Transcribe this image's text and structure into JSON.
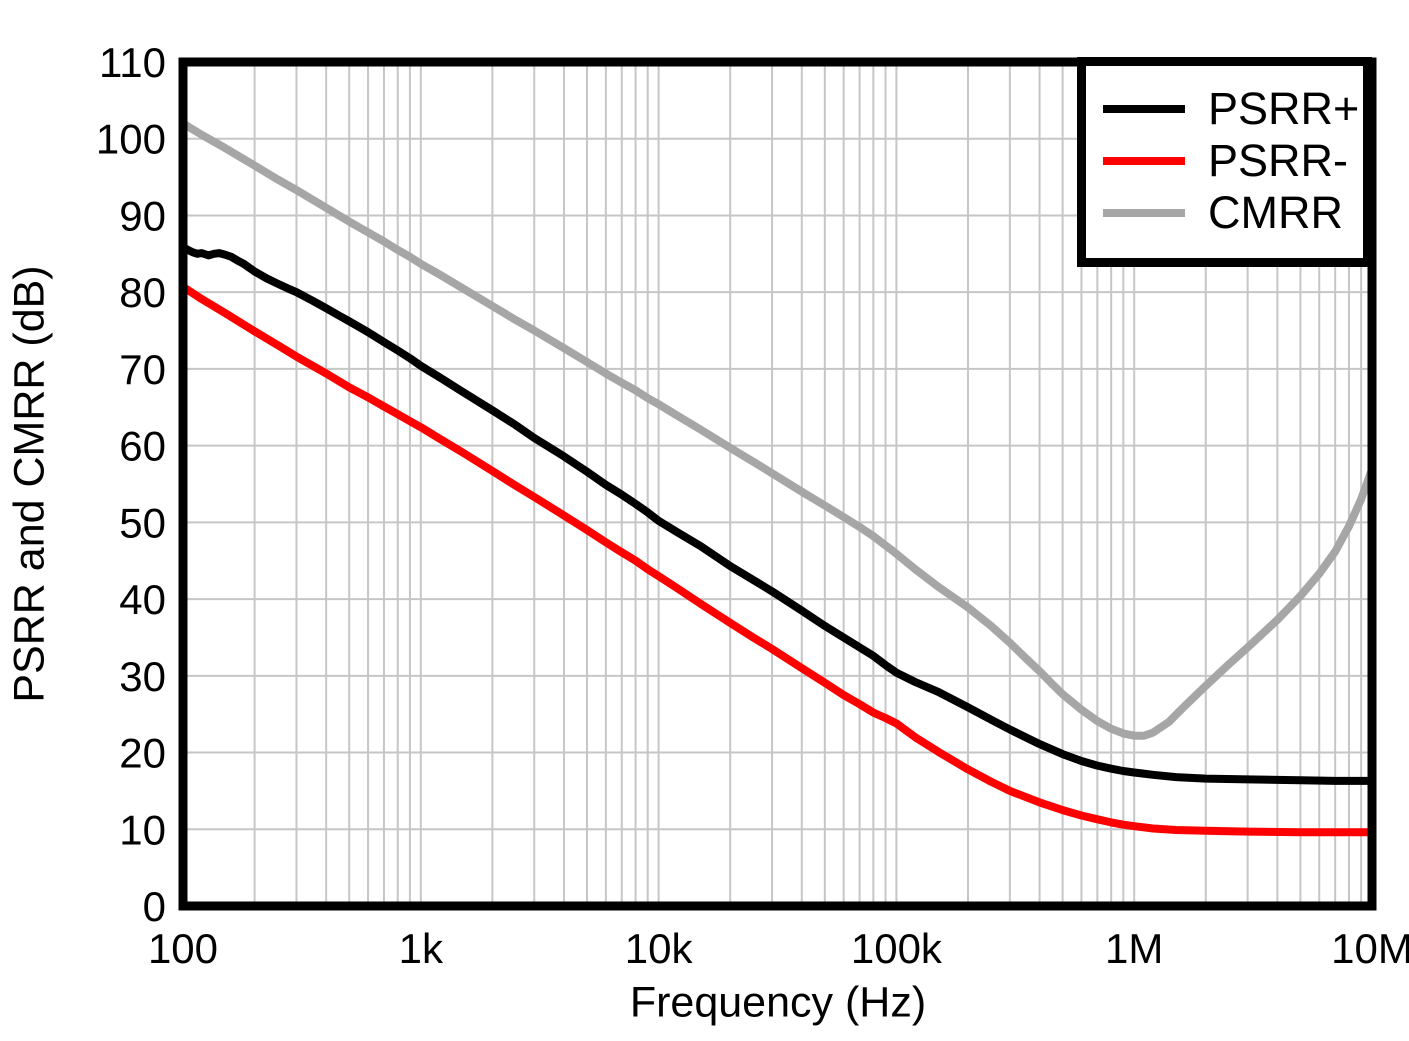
{
  "chart_data": {
    "type": "line",
    "title": "",
    "xlabel": "Frequency (Hz)",
    "ylabel": "PSRR and CMRR (dB)",
    "x_scale": "log",
    "xlim": [
      100,
      10000000
    ],
    "ylim": [
      0,
      110
    ],
    "y_ticks": [
      0,
      10,
      20,
      30,
      40,
      50,
      60,
      70,
      80,
      90,
      100,
      110
    ],
    "x_ticks": [
      {
        "value": 100,
        "label": "100"
      },
      {
        "value": 1000,
        "label": "1k"
      },
      {
        "value": 10000,
        "label": "10k"
      },
      {
        "value": 100000,
        "label": "100k"
      },
      {
        "value": 1000000,
        "label": "1M"
      },
      {
        "value": 10000000,
        "label": "10M"
      }
    ],
    "grid": {
      "x_major": true,
      "x_minor_log": true,
      "y_major": true,
      "y_minor": false
    },
    "legend_position": "top-right",
    "series": [
      {
        "name": "PSRR+",
        "color": "#000000",
        "points": [
          [
            100,
            85.9
          ],
          [
            105,
            85.5
          ],
          [
            110,
            85.2
          ],
          [
            115,
            85.0
          ],
          [
            120,
            85.1
          ],
          [
            128,
            84.8
          ],
          [
            135,
            85.0
          ],
          [
            142,
            85.1
          ],
          [
            150,
            84.9
          ],
          [
            160,
            84.6
          ],
          [
            170,
            84.1
          ],
          [
            180,
            83.7
          ],
          [
            200,
            82.7
          ],
          [
            225,
            81.8
          ],
          [
            250,
            81.1
          ],
          [
            275,
            80.5
          ],
          [
            300,
            80.0
          ],
          [
            350,
            78.9
          ],
          [
            400,
            77.9
          ],
          [
            450,
            77.0
          ],
          [
            500,
            76.2
          ],
          [
            600,
            74.8
          ],
          [
            700,
            73.5
          ],
          [
            800,
            72.4
          ],
          [
            900,
            71.4
          ],
          [
            1000,
            70.4
          ],
          [
            1200,
            68.9
          ],
          [
            1500,
            67.0
          ],
          [
            2000,
            64.6
          ],
          [
            2500,
            62.7
          ],
          [
            3000,
            61.0
          ],
          [
            4000,
            58.6
          ],
          [
            5000,
            56.6
          ],
          [
            6000,
            54.9
          ],
          [
            7000,
            53.6
          ],
          [
            8000,
            52.4
          ],
          [
            9000,
            51.3
          ],
          [
            10000,
            50.2
          ],
          [
            12000,
            48.7
          ],
          [
            15000,
            46.9
          ],
          [
            20000,
            44.3
          ],
          [
            25000,
            42.5
          ],
          [
            30000,
            41.0
          ],
          [
            40000,
            38.5
          ],
          [
            50000,
            36.5
          ],
          [
            60000,
            35.0
          ],
          [
            70000,
            33.7
          ],
          [
            80000,
            32.6
          ],
          [
            90000,
            31.4
          ],
          [
            100000,
            30.4
          ],
          [
            120000,
            29.2
          ],
          [
            150000,
            27.9
          ],
          [
            200000,
            25.9
          ],
          [
            250000,
            24.3
          ],
          [
            300000,
            23.0
          ],
          [
            400000,
            21.1
          ],
          [
            500000,
            19.8
          ],
          [
            600000,
            18.9
          ],
          [
            700000,
            18.3
          ],
          [
            800000,
            17.9
          ],
          [
            900000,
            17.6
          ],
          [
            1000000,
            17.4
          ],
          [
            1200000,
            17.1
          ],
          [
            1500000,
            16.8
          ],
          [
            2000000,
            16.6
          ],
          [
            3000000,
            16.5
          ],
          [
            5000000,
            16.4
          ],
          [
            7000000,
            16.3
          ],
          [
            10000000,
            16.3
          ]
        ]
      },
      {
        "name": "PSRR-",
        "color": "#ff0000",
        "points": [
          [
            100,
            80.7
          ],
          [
            120,
            79.1
          ],
          [
            150,
            77.3
          ],
          [
            200,
            74.9
          ],
          [
            250,
            73.1
          ],
          [
            300,
            71.6
          ],
          [
            400,
            69.4
          ],
          [
            500,
            67.6
          ],
          [
            600,
            66.3
          ],
          [
            700,
            65.1
          ],
          [
            800,
            64.1
          ],
          [
            900,
            63.2
          ],
          [
            1000,
            62.4
          ],
          [
            1200,
            60.9
          ],
          [
            1500,
            59.1
          ],
          [
            2000,
            56.7
          ],
          [
            2500,
            54.8
          ],
          [
            3000,
            53.3
          ],
          [
            4000,
            50.9
          ],
          [
            5000,
            49.0
          ],
          [
            6000,
            47.4
          ],
          [
            7000,
            46.1
          ],
          [
            8000,
            45.0
          ],
          [
            9000,
            43.9
          ],
          [
            10000,
            43.0
          ],
          [
            12000,
            41.4
          ],
          [
            15000,
            39.4
          ],
          [
            20000,
            36.9
          ],
          [
            25000,
            35.0
          ],
          [
            30000,
            33.5
          ],
          [
            40000,
            31.0
          ],
          [
            50000,
            29.1
          ],
          [
            60000,
            27.5
          ],
          [
            70000,
            26.3
          ],
          [
            80000,
            25.2
          ],
          [
            90000,
            24.5
          ],
          [
            100000,
            23.8
          ],
          [
            120000,
            22.0
          ],
          [
            150000,
            20.1
          ],
          [
            200000,
            17.8
          ],
          [
            250000,
            16.2
          ],
          [
            300000,
            15.0
          ],
          [
            400000,
            13.5
          ],
          [
            500000,
            12.5
          ],
          [
            600000,
            11.8
          ],
          [
            700000,
            11.3
          ],
          [
            800000,
            10.9
          ],
          [
            900000,
            10.6
          ],
          [
            1000000,
            10.4
          ],
          [
            1200000,
            10.1
          ],
          [
            1500000,
            9.9
          ],
          [
            2000000,
            9.8
          ],
          [
            3000000,
            9.7
          ],
          [
            5000000,
            9.6
          ],
          [
            10000000,
            9.6
          ]
        ]
      },
      {
        "name": "CMRR",
        "color": "#a6a6a6",
        "points": [
          [
            100,
            102.0
          ],
          [
            120,
            100.5
          ],
          [
            150,
            98.8
          ],
          [
            200,
            96.5
          ],
          [
            250,
            94.7
          ],
          [
            300,
            93.3
          ],
          [
            400,
            91.0
          ],
          [
            500,
            89.2
          ],
          [
            600,
            87.8
          ],
          [
            700,
            86.6
          ],
          [
            800,
            85.5
          ],
          [
            900,
            84.6
          ],
          [
            1000,
            83.7
          ],
          [
            1200,
            82.3
          ],
          [
            1500,
            80.5
          ],
          [
            2000,
            78.2
          ],
          [
            2500,
            76.4
          ],
          [
            3000,
            75.0
          ],
          [
            4000,
            72.7
          ],
          [
            5000,
            70.9
          ],
          [
            6000,
            69.4
          ],
          [
            7000,
            68.2
          ],
          [
            8000,
            67.2
          ],
          [
            9000,
            66.2
          ],
          [
            10000,
            65.4
          ],
          [
            12000,
            63.9
          ],
          [
            15000,
            62.1
          ],
          [
            20000,
            59.7
          ],
          [
            25000,
            57.9
          ],
          [
            30000,
            56.4
          ],
          [
            40000,
            54.0
          ],
          [
            50000,
            52.2
          ],
          [
            60000,
            50.7
          ],
          [
            70000,
            49.4
          ],
          [
            80000,
            48.2
          ],
          [
            90000,
            47.0
          ],
          [
            100000,
            45.9
          ],
          [
            120000,
            43.9
          ],
          [
            150000,
            41.6
          ],
          [
            200000,
            38.9
          ],
          [
            250000,
            36.5
          ],
          [
            300000,
            34.3
          ],
          [
            350000,
            32.3
          ],
          [
            400000,
            30.6
          ],
          [
            450000,
            29.0
          ],
          [
            500000,
            27.6
          ],
          [
            600000,
            25.6
          ],
          [
            700000,
            24.1
          ],
          [
            800000,
            23.1
          ],
          [
            900000,
            22.5
          ],
          [
            1000000,
            22.2
          ],
          [
            1100000,
            22.2
          ],
          [
            1200000,
            22.6
          ],
          [
            1400000,
            24.0
          ],
          [
            1600000,
            25.8
          ],
          [
            2000000,
            28.7
          ],
          [
            2500000,
            31.5
          ],
          [
            3000000,
            33.7
          ],
          [
            4000000,
            37.3
          ],
          [
            5000000,
            40.4
          ],
          [
            6000000,
            43.3
          ],
          [
            7000000,
            46.2
          ],
          [
            8000000,
            49.5
          ],
          [
            9000000,
            53.0
          ],
          [
            10000000,
            56.9
          ]
        ]
      }
    ]
  },
  "colors": {
    "background": "#ffffff",
    "frame": "#000000",
    "grid": "#c6c6c6",
    "text": "#000000"
  }
}
